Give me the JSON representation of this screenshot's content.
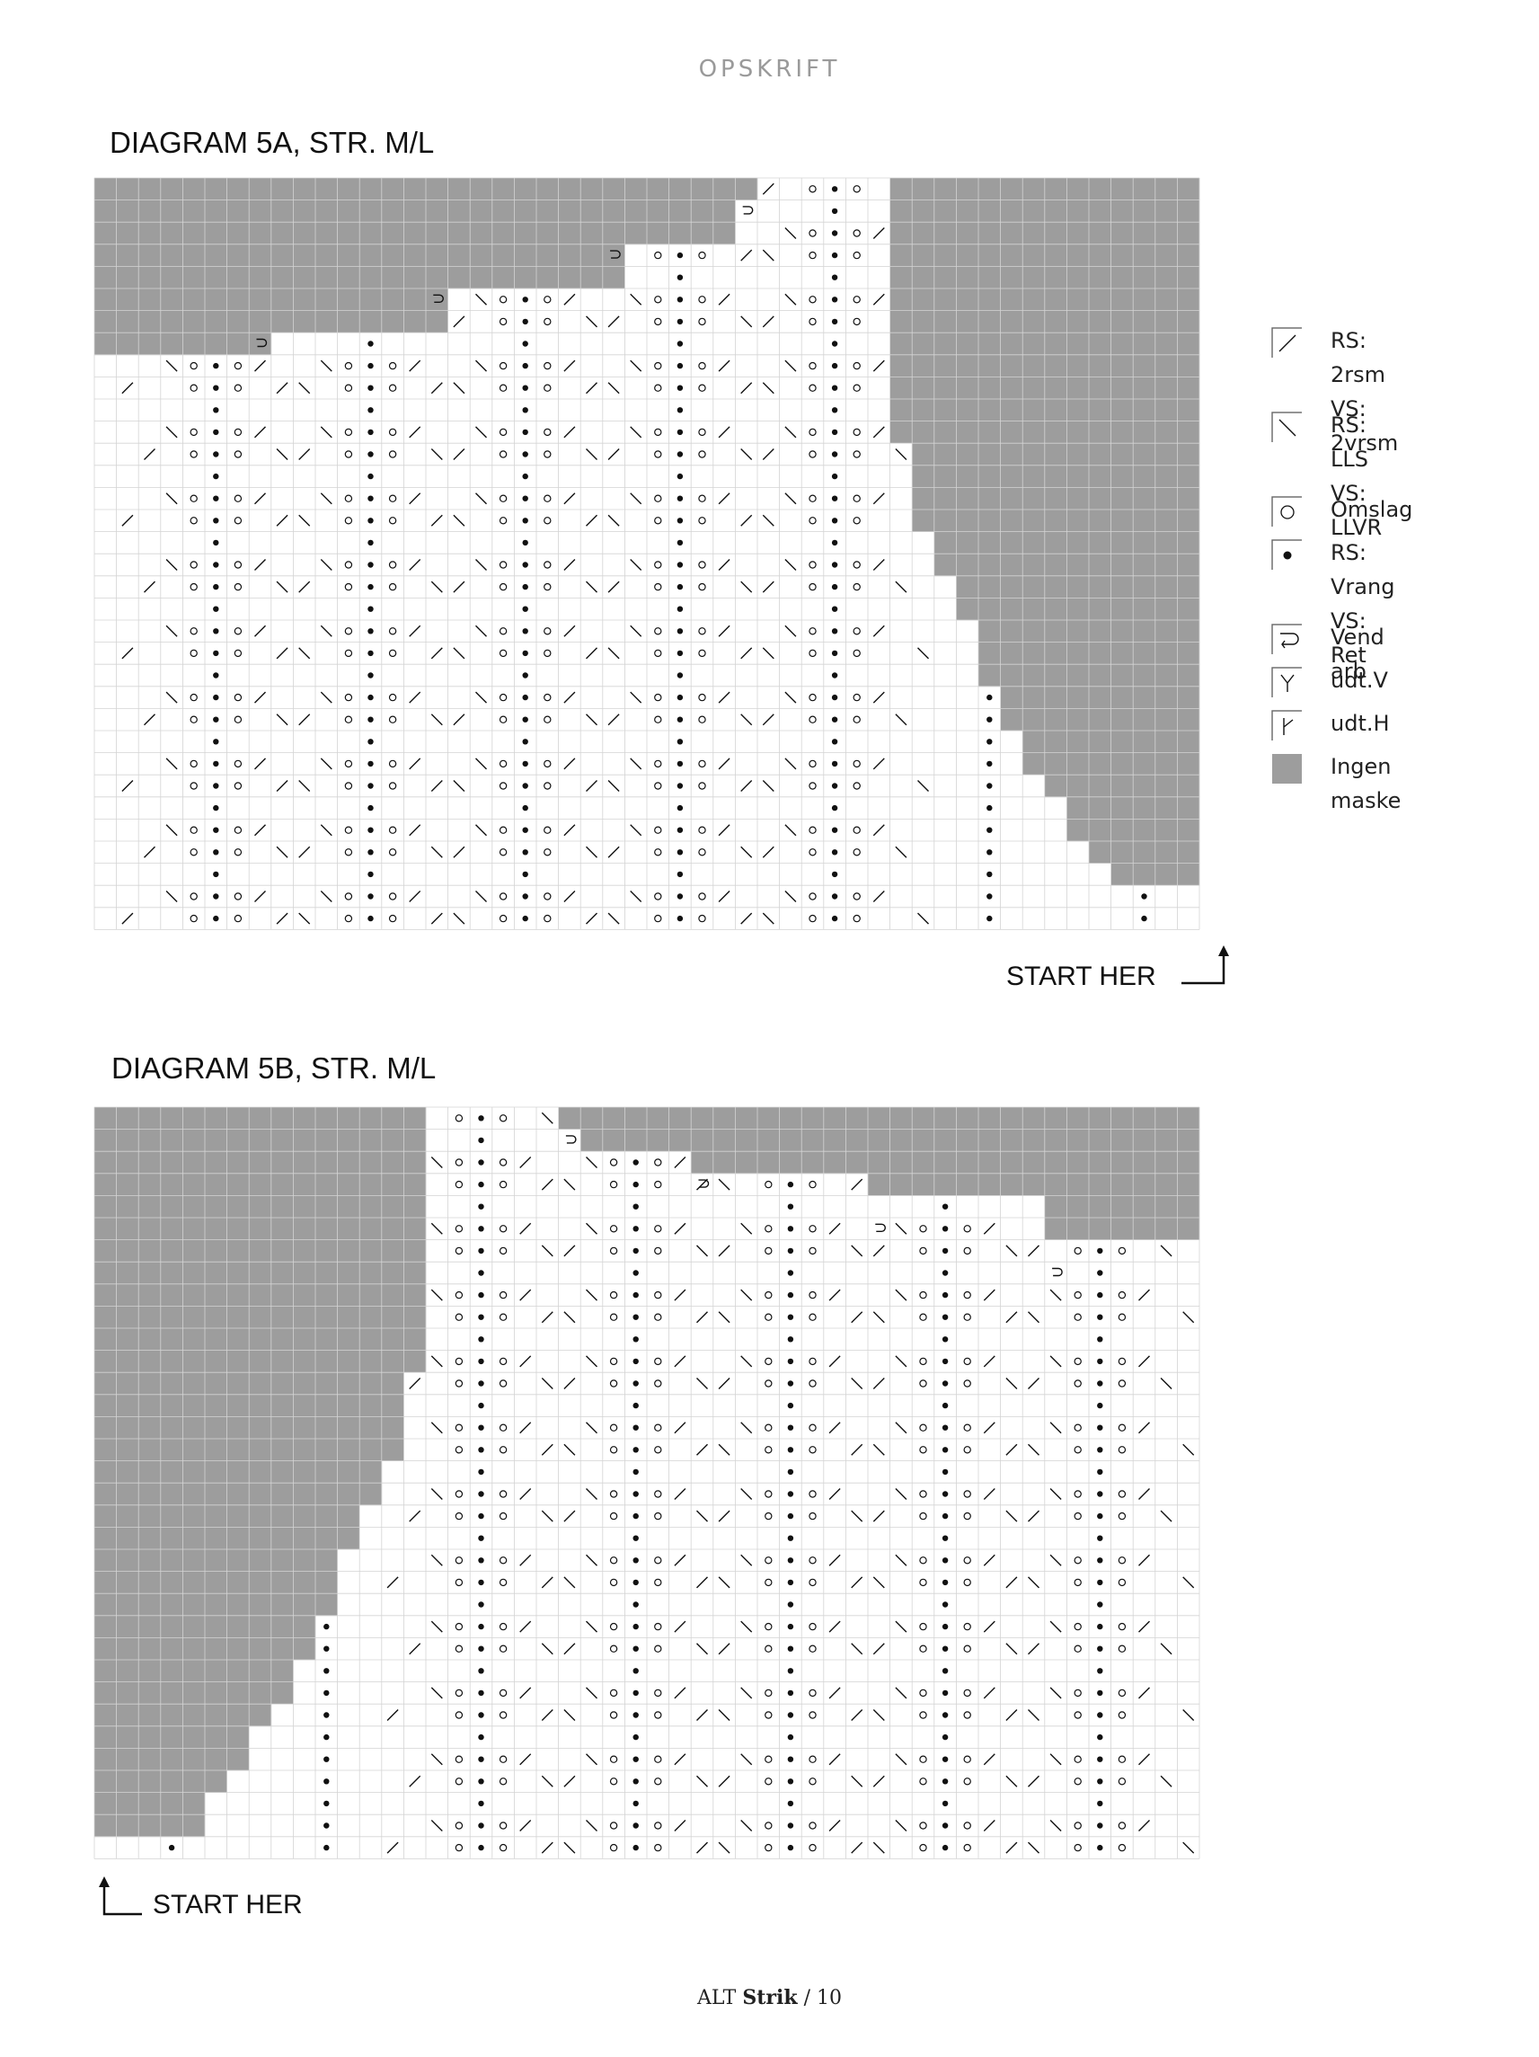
{
  "header": "OPSKRIFT",
  "diagram_a": {
    "title": "DIAGRAM 5A, STR. M/L",
    "start_label": "START HER",
    "columns": 50,
    "rows": 34,
    "top_steps": [
      [
        0,
        30
      ],
      [
        1,
        29
      ],
      [
        2,
        29
      ],
      [
        3,
        24
      ],
      [
        4,
        24
      ],
      [
        5,
        16
      ],
      [
        6,
        16
      ],
      [
        7,
        8
      ],
      [
        8,
        8
      ]
    ],
    "right_steps": [
      [
        0,
        36
      ],
      [
        12,
        37
      ],
      [
        16,
        38
      ],
      [
        18,
        39
      ],
      [
        20,
        40
      ],
      [
        23,
        41
      ],
      [
        25,
        42
      ],
      [
        27,
        43
      ],
      [
        28,
        44
      ],
      [
        30,
        45
      ],
      [
        31,
        46
      ]
    ],
    "turn_marks": [
      [
        1,
        29
      ],
      [
        3,
        23
      ],
      [
        5,
        15
      ],
      [
        7,
        7
      ]
    ],
    "stitch_columns": [
      5,
      12,
      19,
      26,
      33
    ],
    "edge_stitch_columns": [
      [
        16,
        40
      ],
      [
        29,
        47
      ]
    ]
  },
  "diagram_b": {
    "title": "DIAGRAM 5B, STR. M/L",
    "start_label": "START HER",
    "columns": 50,
    "rows": 34,
    "left_steps": [
      [
        0,
        15
      ],
      [
        12,
        14
      ],
      [
        16,
        13
      ],
      [
        18,
        12
      ],
      [
        20,
        11
      ],
      [
        23,
        10
      ],
      [
        25,
        9
      ],
      [
        27,
        8
      ],
      [
        28,
        7
      ],
      [
        30,
        6
      ],
      [
        31,
        5
      ],
      [
        33,
        0
      ]
    ],
    "top_steps": [
      [
        0,
        21
      ],
      [
        1,
        22
      ],
      [
        2,
        27
      ],
      [
        3,
        35
      ],
      [
        4,
        43
      ],
      [
        5,
        43
      ],
      [
        6,
        51
      ],
      [
        7,
        51
      ]
    ],
    "turn_marks": [
      [
        1,
        21
      ],
      [
        3,
        27
      ],
      [
        5,
        35
      ],
      [
        7,
        43
      ]
    ],
    "stitch_columns": [
      17,
      24,
      31,
      38,
      45
    ],
    "edge_stitch_columns": [
      [
        20,
        10
      ],
      [
        33,
        3
      ]
    ]
  },
  "legend": [
    {
      "icon": "slash-right-icon",
      "lines": [
        "RS: 2rsm",
        "VS: 2vrsm"
      ]
    },
    {
      "icon": "slash-left-icon",
      "lines": [
        "RS: LLS",
        "VS: LLVR"
      ]
    },
    {
      "icon": "circle-icon",
      "lines": [
        "Omslag"
      ]
    },
    {
      "icon": "dot-icon",
      "lines": [
        "RS: Vrang",
        "VS: Ret"
      ]
    },
    {
      "icon": "turn-icon",
      "lines": [
        "Vend arb"
      ]
    },
    {
      "icon": "increase-left-icon",
      "lines": [
        "udt.V"
      ]
    },
    {
      "icon": "increase-right-icon",
      "lines": [
        "udt.H"
      ]
    },
    {
      "icon": "no-stitch-icon",
      "lines": [
        "Ingen maske"
      ]
    }
  ],
  "footer": {
    "brand_light": "ALT",
    "brand_bold": "Strik",
    "page": "/ 10"
  },
  "colors": {
    "no_stitch": "#9d9d9d",
    "grid_line": "#d4d4d4",
    "symbol": "#111111"
  }
}
